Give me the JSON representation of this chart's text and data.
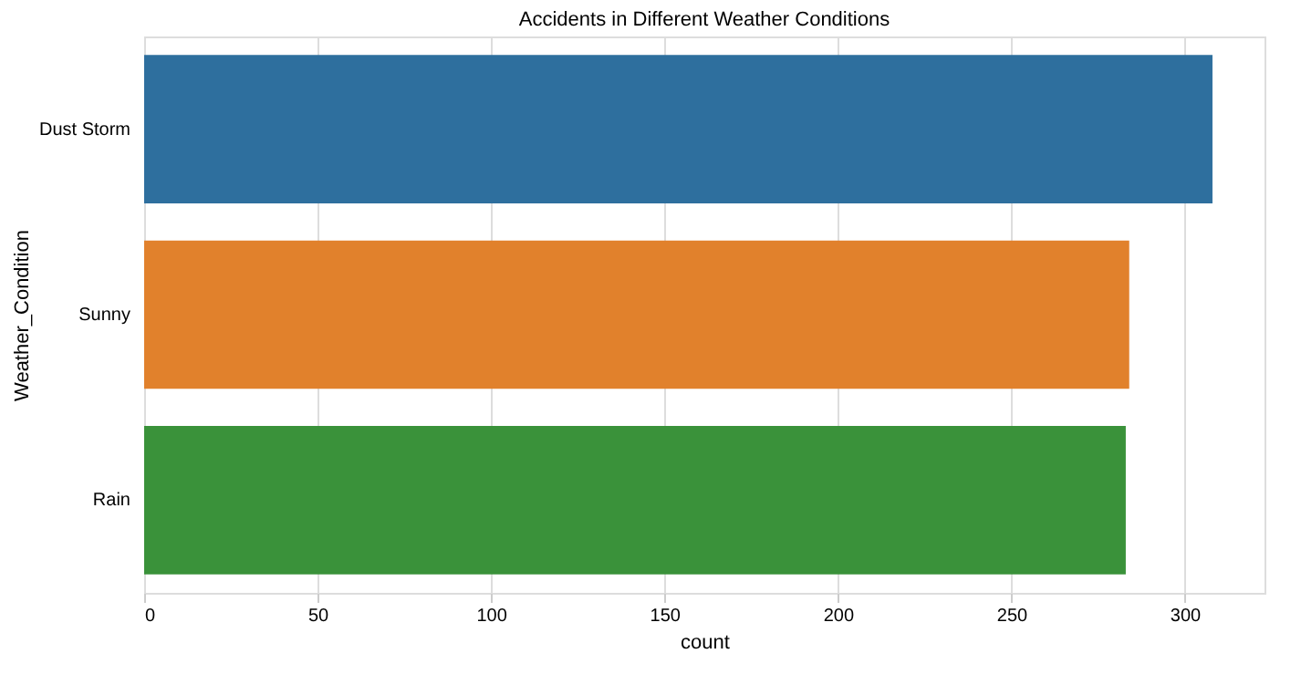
{
  "chart_data": {
    "type": "bar",
    "orientation": "horizontal",
    "title": "Accidents in Different Weather Conditions",
    "xlabel": "count",
    "ylabel": "Weather_Condition",
    "categories": [
      "Dust Storm",
      "Sunny",
      "Rain"
    ],
    "values": [
      308,
      284,
      283
    ],
    "colors": [
      "#2e6f9e",
      "#e1812c",
      "#3a923a"
    ],
    "xlim": [
      0,
      323
    ],
    "xticks": [
      0,
      50,
      100,
      150,
      200,
      250,
      300
    ],
    "grid": "x"
  }
}
